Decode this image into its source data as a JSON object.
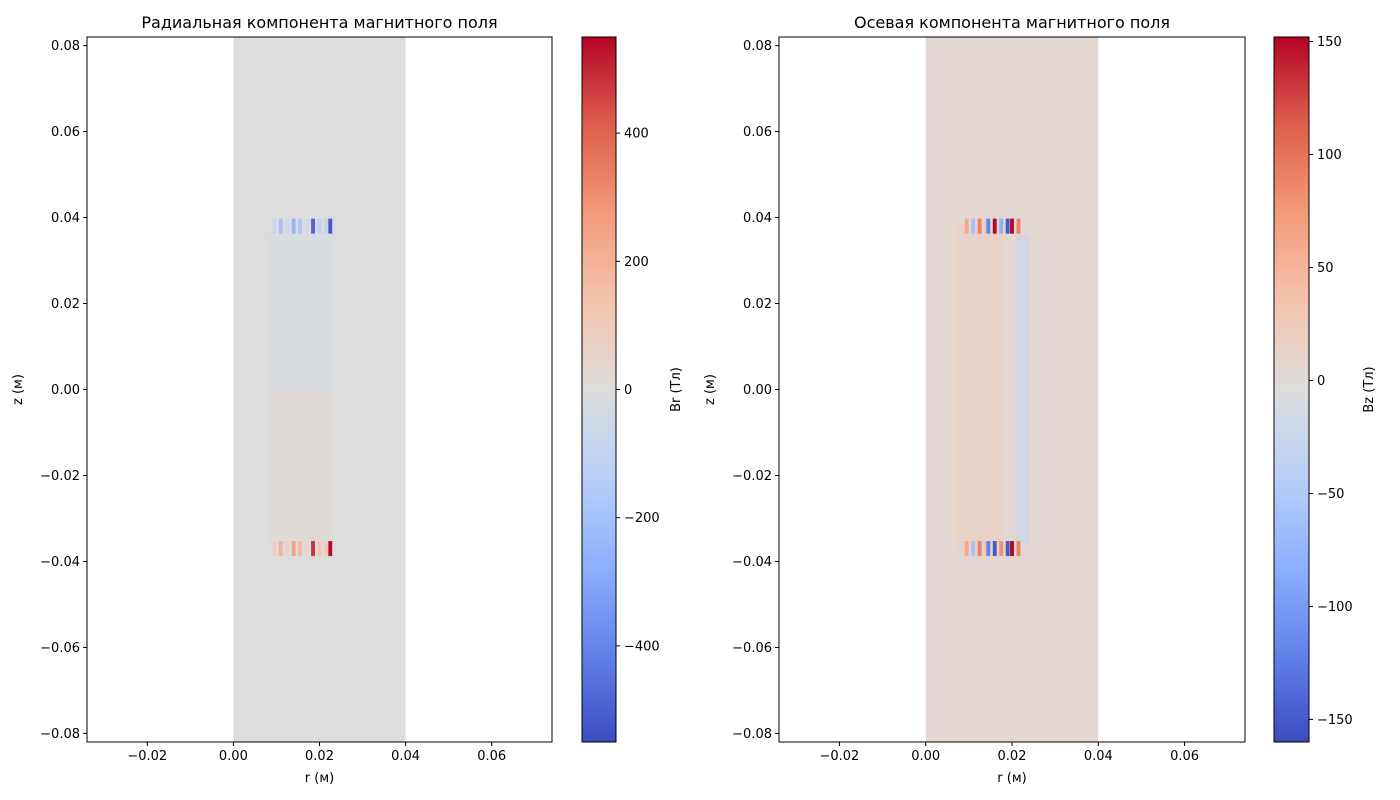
{
  "chart_data": [
    {
      "type": "heatmap",
      "title": "Радиальная компонента магнитного поля",
      "xlabel": "r (м)",
      "ylabel": "z (м)",
      "xlim": [
        -0.034,
        0.074
      ],
      "ylim": [
        -0.082,
        0.082
      ],
      "xticks": [
        -0.02,
        0.0,
        0.02,
        0.04,
        0.06
      ],
      "xtick_labels": [
        "−0.02",
        "0.00",
        "0.02",
        "0.04",
        "0.06"
      ],
      "yticks": [
        -0.08,
        -0.06,
        -0.04,
        -0.02,
        0.0,
        0.02,
        0.04,
        0.06,
        0.08
      ],
      "ytick_labels": [
        "−0.08",
        "−0.06",
        "−0.04",
        "−0.02",
        "0.00",
        "0.02",
        "0.04",
        "0.06",
        "0.08"
      ],
      "colormap": "coolwarm",
      "field_extent": {
        "r": [
          0.0,
          0.04
        ],
        "z": [
          -0.082,
          0.082
        ]
      },
      "colorbar": {
        "label": "Br (Тл)",
        "range": [
          -550,
          550
        ],
        "ticks": [
          -400,
          -200,
          0,
          200,
          400
        ],
        "tick_labels": [
          "−400",
          "−200",
          "0",
          "200",
          "400"
        ]
      },
      "hotspots": [
        {
          "r": 0.0095,
          "z": 0.038,
          "value": -80
        },
        {
          "r": 0.011,
          "z": 0.038,
          "value": -200
        },
        {
          "r": 0.0125,
          "z": 0.038,
          "value": -60
        },
        {
          "r": 0.014,
          "z": 0.038,
          "value": -250
        },
        {
          "r": 0.0155,
          "z": 0.038,
          "value": -180
        },
        {
          "r": 0.017,
          "z": 0.038,
          "value": -40
        },
        {
          "r": 0.0185,
          "z": 0.038,
          "value": -480
        },
        {
          "r": 0.02,
          "z": 0.038,
          "value": -120
        },
        {
          "r": 0.0215,
          "z": 0.038,
          "value": -90
        },
        {
          "r": 0.0225,
          "z": 0.038,
          "value": -520
        },
        {
          "r": 0.0095,
          "z": -0.037,
          "value": 80
        },
        {
          "r": 0.011,
          "z": -0.037,
          "value": 200
        },
        {
          "r": 0.0125,
          "z": -0.037,
          "value": 60
        },
        {
          "r": 0.014,
          "z": -0.037,
          "value": 250
        },
        {
          "r": 0.0155,
          "z": -0.037,
          "value": 180
        },
        {
          "r": 0.017,
          "z": -0.037,
          "value": 40
        },
        {
          "r": 0.0185,
          "z": -0.037,
          "value": 480
        },
        {
          "r": 0.02,
          "z": -0.037,
          "value": 120
        },
        {
          "r": 0.0215,
          "z": -0.037,
          "value": 90
        },
        {
          "r": 0.0225,
          "z": -0.037,
          "value": 540
        }
      ]
    },
    {
      "type": "heatmap",
      "title": "Осевая компонента магнитного поля",
      "xlabel": "r (м)",
      "ylabel": "z (м)",
      "xlim": [
        -0.034,
        0.074
      ],
      "ylim": [
        -0.082,
        0.082
      ],
      "xticks": [
        -0.02,
        0.0,
        0.02,
        0.04,
        0.06
      ],
      "xtick_labels": [
        "−0.02",
        "0.00",
        "0.02",
        "0.04",
        "0.06"
      ],
      "yticks": [
        -0.08,
        -0.06,
        -0.04,
        -0.02,
        0.0,
        0.02,
        0.04,
        0.06,
        0.08
      ],
      "ytick_labels": [
        "−0.08",
        "−0.06",
        "−0.04",
        "−0.02",
        "0.00",
        "0.02",
        "0.04",
        "0.06",
        "0.08"
      ],
      "colormap": "coolwarm",
      "field_extent": {
        "r": [
          0.0,
          0.04
        ],
        "z": [
          -0.082,
          0.082
        ]
      },
      "background_value": 5,
      "colorbar": {
        "label": "Bz (Тл)",
        "range": [
          -160,
          152
        ],
        "ticks": [
          -150,
          -100,
          -50,
          0,
          50,
          100,
          150
        ],
        "tick_labels": [
          "−150",
          "−100",
          "−50",
          "0",
          "50",
          "100",
          "150"
        ]
      },
      "hotspots": [
        {
          "r": 0.0095,
          "z": 0.038,
          "value": 60
        },
        {
          "r": 0.011,
          "z": 0.038,
          "value": -60
        },
        {
          "r": 0.0125,
          "z": 0.038,
          "value": 90
        },
        {
          "r": 0.014,
          "z": 0.038,
          "value": 30
        },
        {
          "r": 0.0145,
          "z": 0.038,
          "value": -120
        },
        {
          "r": 0.016,
          "z": 0.038,
          "value": 150
        },
        {
          "r": 0.0175,
          "z": 0.038,
          "value": -80
        },
        {
          "r": 0.019,
          "z": 0.038,
          "value": -150
        },
        {
          "r": 0.02,
          "z": 0.038,
          "value": 150
        },
        {
          "r": 0.0215,
          "z": 0.038,
          "value": 90
        },
        {
          "r": 0.0095,
          "z": -0.037,
          "value": 60
        },
        {
          "r": 0.011,
          "z": -0.037,
          "value": -60
        },
        {
          "r": 0.0125,
          "z": -0.037,
          "value": 90
        },
        {
          "r": 0.014,
          "z": -0.037,
          "value": 30
        },
        {
          "r": 0.0145,
          "z": -0.037,
          "value": -120
        },
        {
          "r": 0.016,
          "z": -0.037,
          "value": -150
        },
        {
          "r": 0.0175,
          "z": -0.037,
          "value": 80
        },
        {
          "r": 0.019,
          "z": -0.037,
          "value": -150
        },
        {
          "r": 0.02,
          "z": -0.037,
          "value": 150
        },
        {
          "r": 0.0215,
          "z": -0.037,
          "value": 90
        }
      ]
    }
  ]
}
